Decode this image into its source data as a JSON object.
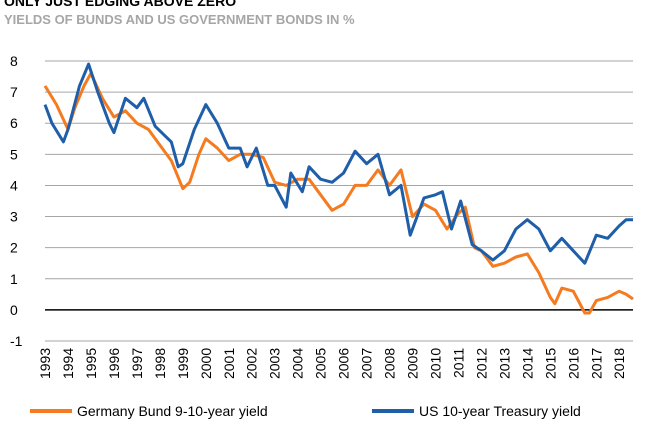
{
  "chart_data": {
    "type": "line",
    "title": "ONLY JUST EDGING ABOVE ZERO",
    "subtitle": "YIELDS OF BUNDS AND US GOVERNMENT BONDS IN %",
    "x": [
      1993.0,
      1993.3,
      1993.5,
      1993.8,
      1994.0,
      1994.3,
      1994.5,
      1994.7,
      1994.9,
      1995.0,
      1995.3,
      1995.5,
      1995.8,
      1996.0,
      1996.5,
      1997.0,
      1997.3,
      1997.5,
      1997.8,
      1998.0,
      1998.5,
      1998.8,
      1999.0,
      1999.3,
      1999.5,
      1999.7,
      2000.0,
      2000.5,
      2001.0,
      2001.5,
      2001.8,
      2002.0,
      2002.2,
      2002.5,
      2002.7,
      2003.0,
      2003.5,
      2003.7,
      2004.0,
      2004.2,
      2004.5,
      2005.0,
      2005.5,
      2006.0,
      2006.5,
      2007.0,
      2007.5,
      2008.0,
      2008.5,
      2008.9,
      2009.0,
      2009.5,
      2010.0,
      2010.3,
      2010.5,
      2010.7,
      2011.0,
      2011.1,
      2011.3,
      2011.6,
      2011.7,
      2012.0,
      2012.5,
      2013.0,
      2013.5,
      2014.0,
      2014.5,
      2015.0,
      2015.2,
      2015.5,
      2016.0,
      2016.5,
      2016.7,
      2017.0,
      2017.5,
      2018.0,
      2018.3,
      2018.6
    ],
    "series": [
      {
        "name": "Germany Bund 9-10-year yield",
        "color": "#f47b20",
        "values": [
          7.2,
          null,
          6.6,
          null,
          5.8,
          6.5,
          null,
          7.2,
          null,
          7.6,
          null,
          6.8,
          null,
          6.2,
          6.4,
          6.0,
          null,
          5.8,
          null,
          5.3,
          4.8,
          null,
          3.9,
          4.1,
          null,
          5.0,
          5.5,
          5.2,
          4.8,
          5.0,
          null,
          5.0,
          null,
          4.9,
          null,
          4.1,
          4.0,
          null,
          4.2,
          null,
          4.2,
          3.7,
          3.2,
          3.4,
          4.0,
          4.0,
          4.5,
          4.0,
          4.5,
          null,
          3.0,
          3.4,
          3.2,
          null,
          2.6,
          null,
          3.1,
          null,
          3.3,
          null,
          2.0,
          1.9,
          1.4,
          1.5,
          1.7,
          1.8,
          1.2,
          0.4,
          0.2,
          0.7,
          0.6,
          -0.1,
          -0.1,
          0.3,
          0.4,
          0.6,
          0.5,
          0.35
        ]
      },
      {
        "name": "US 10-year Treasury yield",
        "color": "#1f5ea8",
        "values": [
          6.6,
          6.0,
          null,
          5.4,
          5.8,
          null,
          7.2,
          null,
          7.9,
          null,
          7.0,
          null,
          6.0,
          5.7,
          6.8,
          6.5,
          6.8,
          null,
          5.9,
          null,
          5.4,
          4.6,
          4.7,
          null,
          5.8,
          null,
          6.6,
          6.0,
          5.2,
          5.2,
          4.6,
          null,
          5.2,
          null,
          4.0,
          4.0,
          3.3,
          4.4,
          null,
          3.8,
          4.6,
          4.2,
          4.1,
          4.4,
          5.1,
          4.7,
          5.0,
          3.7,
          4.0,
          2.4,
          null,
          3.6,
          3.7,
          3.8,
          null,
          2.6,
          null,
          3.5,
          null,
          2.1,
          null,
          1.9,
          1.6,
          1.9,
          2.6,
          2.9,
          2.6,
          1.9,
          null,
          2.3,
          1.9,
          1.5,
          null,
          2.4,
          2.3,
          2.7,
          2.9,
          2.9
        ]
      }
    ],
    "xlim": [
      1993,
      2018.6
    ],
    "xticks": [
      1993,
      1994,
      1995,
      1996,
      1997,
      1998,
      1999,
      2000,
      2001,
      2002,
      2003,
      2004,
      2005,
      2006,
      2007,
      2008,
      2009,
      2010,
      2011,
      2012,
      2013,
      2014,
      2015,
      2016,
      2017,
      2018
    ],
    "ylim": [
      -1,
      8
    ],
    "yticks": [
      -1,
      0,
      1,
      2,
      3,
      4,
      5,
      6,
      7,
      8
    ],
    "grid": true
  }
}
